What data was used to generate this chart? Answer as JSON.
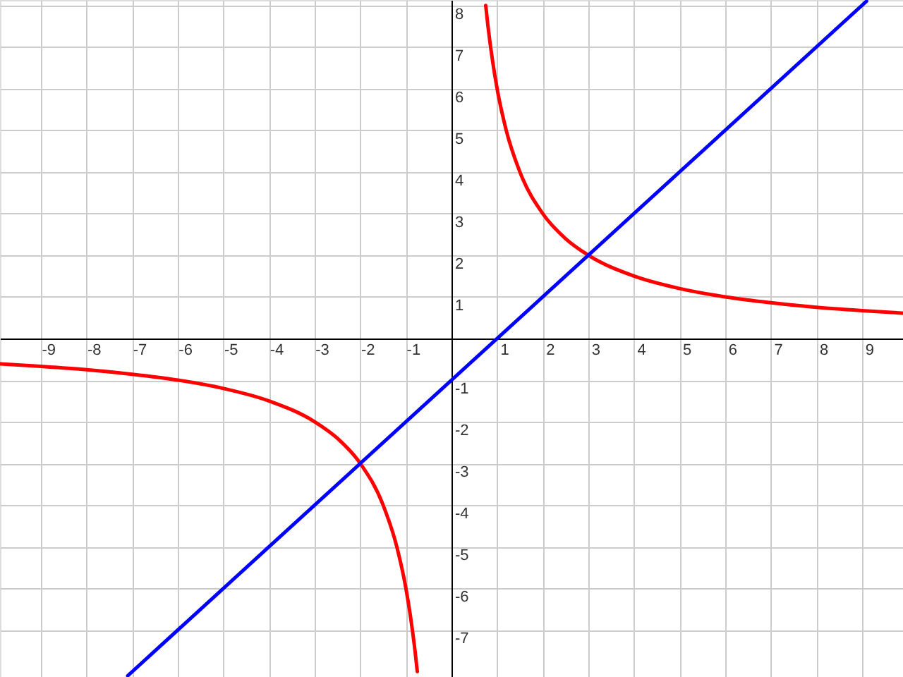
{
  "chart_data": {
    "type": "line",
    "xlim": [
      -9.9,
      9.9
    ],
    "ylim": [
      -8.13,
      8.13
    ],
    "xticks": [
      -9,
      -8,
      -7,
      -6,
      -5,
      -4,
      -3,
      -2,
      -1,
      1,
      2,
      3,
      4,
      5,
      6,
      7,
      8,
      9
    ],
    "yticks": [
      -7,
      -6,
      -5,
      -4,
      -3,
      -2,
      -1,
      1,
      2,
      3,
      4,
      5,
      6,
      7,
      8
    ],
    "grid": true,
    "series": [
      {
        "color": "#ff0000",
        "x": [
          -9.9,
          -9,
          -8,
          -7,
          -6,
          -5,
          -4,
          -3,
          -2.5,
          -2,
          -1.5,
          -1.2,
          -1,
          -0.9,
          -0.8,
          -0.75,
          0,
          0.75,
          0.8,
          0.9,
          1,
          1.2,
          1.5,
          2,
          2.5,
          3,
          4,
          5,
          6,
          7,
          8,
          9,
          9.9
        ],
        "values": [
          -0.61,
          -0.67,
          -0.75,
          -0.86,
          -1,
          -1.2,
          -1.5,
          -2,
          -2.4,
          -3,
          -4,
          -5,
          -6,
          -6.67,
          -7.5,
          -8,
          null,
          8,
          7.5,
          6.67,
          6,
          5,
          4,
          3,
          2.4,
          2,
          1.5,
          1.2,
          1,
          0.86,
          0.75,
          0.67,
          0.61
        ]
      },
      {
        "color": "#0000ff",
        "x": [
          -7.1,
          9.1
        ],
        "values": [
          -8.1,
          8.1
        ]
      }
    ]
  }
}
